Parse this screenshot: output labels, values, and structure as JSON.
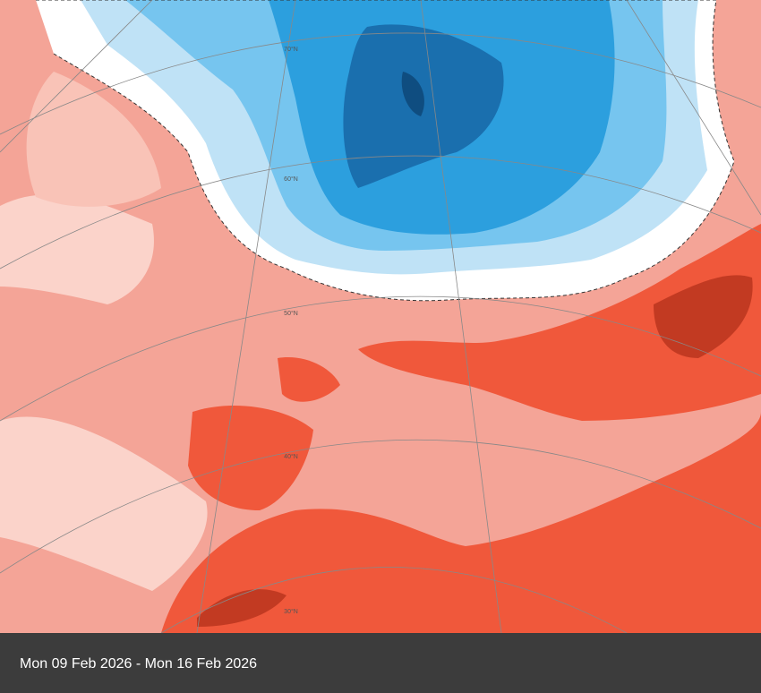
{
  "map": {
    "latitude_labels": [
      "70°N",
      "60°N",
      "50°N",
      "40°N",
      "30°N"
    ]
  },
  "caption": "Mon 09 Feb 2026 - Mon 16 Feb 2026"
}
